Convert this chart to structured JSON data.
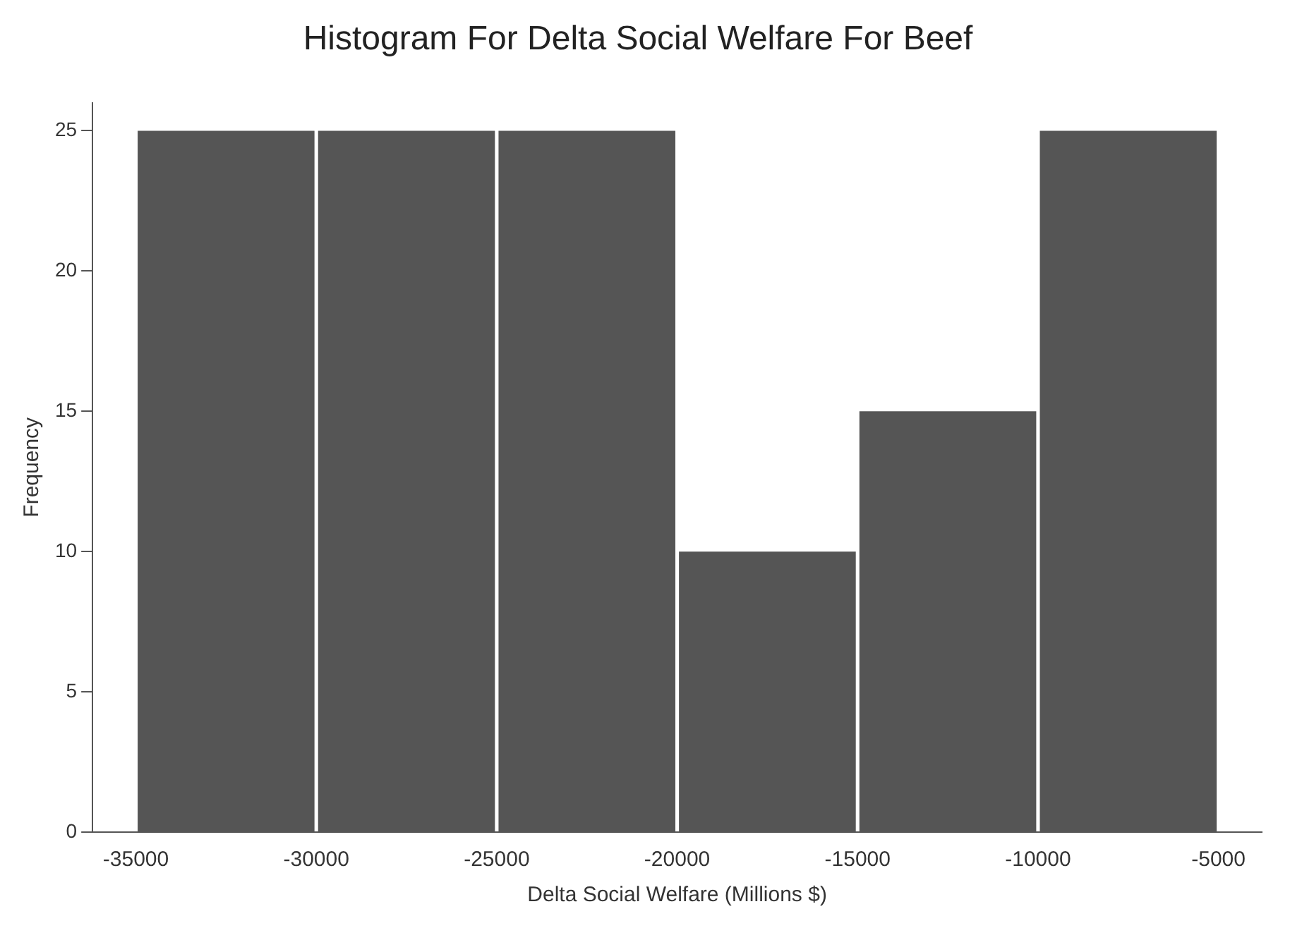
{
  "chart_data": {
    "type": "histogram",
    "title": "Histogram For Delta Social Welfare For Beef",
    "xlabel": "Delta Social Welfare (Millions $)",
    "ylabel": "Frequency",
    "bins": [
      -35000,
      -30000,
      -25000,
      -20000,
      -15000,
      -10000,
      -5000
    ],
    "values": [
      25,
      25,
      25,
      10,
      15,
      25
    ],
    "color": "#555555",
    "xlim": [
      -36200,
      -3800
    ],
    "xticks": [
      -35000,
      -30000,
      -25000,
      -20000,
      -15000,
      -10000,
      -5000
    ],
    "ylim": [
      0,
      26
    ],
    "yticks": [
      0,
      5,
      10,
      15,
      20,
      25
    ],
    "grid": false,
    "legend": false
  }
}
